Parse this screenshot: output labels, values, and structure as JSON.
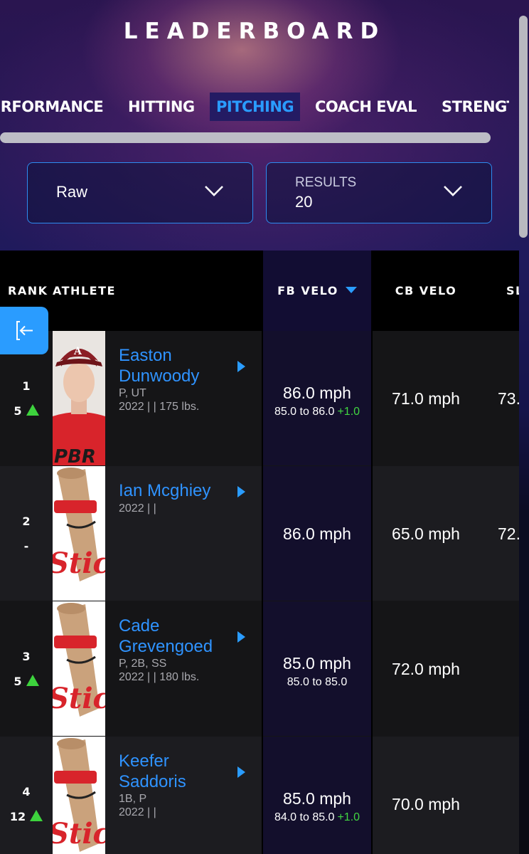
{
  "header": {
    "title": "LEADERBOARD"
  },
  "tabs": [
    {
      "label": "PERFORMANCE",
      "active": false
    },
    {
      "label": "HITTING",
      "active": false
    },
    {
      "label": "PITCHING",
      "active": true
    },
    {
      "label": "COACH EVAL",
      "active": false
    },
    {
      "label": "STRENGTH",
      "active": false
    }
  ],
  "filters": {
    "type_select": {
      "value": "Raw"
    },
    "results_select": {
      "label": "RESULTS",
      "value": "20"
    }
  },
  "table": {
    "headers": {
      "rank": "RANK",
      "athlete": "ATHLETE",
      "fb_velo": "FB VELO",
      "cb_velo": "CB VELO",
      "sl_velo": "SL"
    },
    "sort": {
      "column": "FB VELO",
      "direction": "desc"
    },
    "rows": [
      {
        "rank": "1",
        "change": "5",
        "trend": "up",
        "name": "Easton Dunwoody",
        "positions": "P, UT",
        "info": "2022 |  | 175 lbs.",
        "fb": "86.0 mph",
        "fb_range": "85.0 to 86.0",
        "fb_delta": "+1.0",
        "cb": "71.0 mph",
        "sl": "73."
      },
      {
        "rank": "2",
        "change": "-",
        "trend": "none",
        "name": "Ian Mcghiey",
        "positions": "",
        "info": "2022 |  |",
        "fb": "86.0 mph",
        "fb_range": "",
        "fb_delta": "",
        "cb": "65.0 mph",
        "sl": "72."
      },
      {
        "rank": "3",
        "change": "5",
        "trend": "up",
        "name": "Cade Grevengoed",
        "positions": "P, 2B, SS",
        "info": "2022 |  | 180 lbs.",
        "fb": "85.0 mph",
        "fb_range": "85.0 to 85.0",
        "fb_delta": "",
        "cb": "72.0 mph",
        "sl": ""
      },
      {
        "rank": "4",
        "change": "12",
        "trend": "up",
        "name": "Keefer Saddoris",
        "positions": "1B, P",
        "info": "2022 |  |",
        "fb": "85.0 mph",
        "fb_range": "84.0 to 85.0",
        "fb_delta": "+1.0",
        "cb": "70.0 mph",
        "sl": ""
      }
    ]
  },
  "colors": {
    "accent": "#2a9cff",
    "trend_up": "#3dd33d",
    "link": "#2f93ff"
  },
  "icons": {
    "exit_button": "exit-icon",
    "sort": "sort-desc-icon",
    "dropdown": "chevron-down-icon"
  }
}
